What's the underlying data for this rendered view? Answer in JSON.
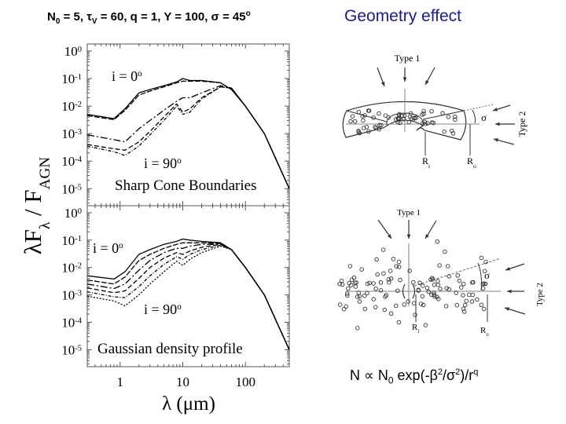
{
  "header": {
    "params": {
      "n": "N",
      "n_sub": "0",
      "p1": " = 5, ",
      "tau": "τ",
      "tau_sub": "V",
      "p2": " = 60, q = 1, Y = 100, ",
      "sigma": "σ",
      "p3": " = 45",
      "deg": "o"
    },
    "geometry_title": "Geometry effect"
  },
  "colors": {
    "geometry_title": "#1a1a8c",
    "curves": "#000000",
    "diagram": "#333333"
  },
  "chart_data": {
    "type": "line",
    "xscale": "log",
    "yscale": "log",
    "xlim": [
      0.3,
      500
    ],
    "xlabel": "λ (μm)",
    "ylabel": {
      "main": "λF",
      "sub1": "λ",
      "mid": " / F",
      "sub2": "AGN"
    },
    "xticks": [
      {
        "v": 1,
        "label": "1"
      },
      {
        "v": 10,
        "label": "10"
      },
      {
        "v": 100,
        "label": "100"
      }
    ],
    "yticks": [
      {
        "v": 1,
        "exp": "0"
      },
      {
        "v": 0.1,
        "exp": "-1"
      },
      {
        "v": 0.01,
        "exp": "-2"
      },
      {
        "v": 0.001,
        "exp": "-3"
      },
      {
        "v": 0.0001,
        "exp": "-4"
      },
      {
        "v": 1e-05,
        "exp": "-5"
      }
    ],
    "x": [
      0.3,
      0.8,
      1.2,
      2,
      3,
      5,
      8,
      10,
      13,
      20,
      40,
      60,
      100,
      200,
      500
    ],
    "panels": [
      {
        "label": "Sharp Cone Boundaries",
        "ylim": [
          2.4e-06,
          1.8
        ],
        "annotations": {
          "top": "i = 0",
          "bottom": "i = 90",
          "deg": "o"
        },
        "series": [
          [
            0.005,
            0.0035,
            0.008,
            0.03,
            0.04,
            0.055,
            0.075,
            0.1,
            0.085,
            0.085,
            0.07,
            0.04,
            0.01,
            0.001,
            1e-05
          ],
          [
            0.0045,
            0.0032,
            0.007,
            0.025,
            0.035,
            0.05,
            0.07,
            0.08,
            0.08,
            0.08,
            0.07,
            0.04,
            0.01,
            0.001,
            1e-05
          ],
          [
            0.0009,
            0.0006,
            0.0005,
            0.0015,
            0.003,
            0.007,
            0.015,
            0.02,
            0.02,
            0.03,
            0.055,
            0.045,
            0.01,
            0.001,
            1e-05
          ],
          [
            0.0004,
            0.00028,
            0.00025,
            0.0005,
            0.0012,
            0.004,
            0.012,
            0.006,
            0.008,
            0.02,
            0.05,
            0.045,
            0.01,
            0.001,
            1e-05
          ],
          [
            0.00035,
            0.00022,
            0.00016,
            0.00035,
            0.0009,
            0.003,
            0.01,
            0.005,
            0.006,
            0.018,
            0.05,
            0.045,
            0.01,
            0.001,
            1e-05
          ]
        ]
      },
      {
        "label": "Gaussian density profile",
        "ylim": [
          2.4e-06,
          1.8
        ],
        "annotations": {
          "top": "i = 0",
          "bottom": "i = 90",
          "deg": "o"
        },
        "series": [
          [
            0.005,
            0.0038,
            0.007,
            0.03,
            0.045,
            0.07,
            0.09,
            0.11,
            0.1,
            0.09,
            0.08,
            0.045,
            0.01,
            0.001,
            1e-05
          ],
          [
            0.0035,
            0.0025,
            0.0045,
            0.018,
            0.03,
            0.05,
            0.07,
            0.08,
            0.08,
            0.08,
            0.075,
            0.045,
            0.01,
            0.001,
            1e-05
          ],
          [
            0.0025,
            0.0017,
            0.0025,
            0.008,
            0.018,
            0.035,
            0.05,
            0.05,
            0.06,
            0.07,
            0.07,
            0.045,
            0.01,
            0.001,
            1e-05
          ],
          [
            0.0018,
            0.0012,
            0.0014,
            0.004,
            0.01,
            0.022,
            0.035,
            0.03,
            0.04,
            0.055,
            0.07,
            0.045,
            0.01,
            0.001,
            1e-05
          ],
          [
            0.0013,
            0.00085,
            0.0008,
            0.002,
            0.005,
            0.013,
            0.025,
            0.02,
            0.03,
            0.045,
            0.065,
            0.045,
            0.01,
            0.001,
            1e-05
          ],
          [
            0.0009,
            0.0006,
            0.0004,
            0.001,
            0.0025,
            0.007,
            0.017,
            0.012,
            0.02,
            0.035,
            0.06,
            0.045,
            0.01,
            0.001,
            1e-05
          ]
        ]
      }
    ]
  },
  "diagrams": {
    "type1": "Type 1",
    "type2": "Type 2",
    "sigma": "σ",
    "ri": {
      "r": "R",
      "sub": "i"
    },
    "ro": {
      "r": "R",
      "sub": "o"
    }
  },
  "equation": {
    "a": "N ∝ N",
    "a_sub": "0",
    "b": " exp(-β",
    "b_sup": "2",
    "c": "/σ",
    "c_sup": "2",
    "d": ")/r",
    "d_sup": "q"
  }
}
